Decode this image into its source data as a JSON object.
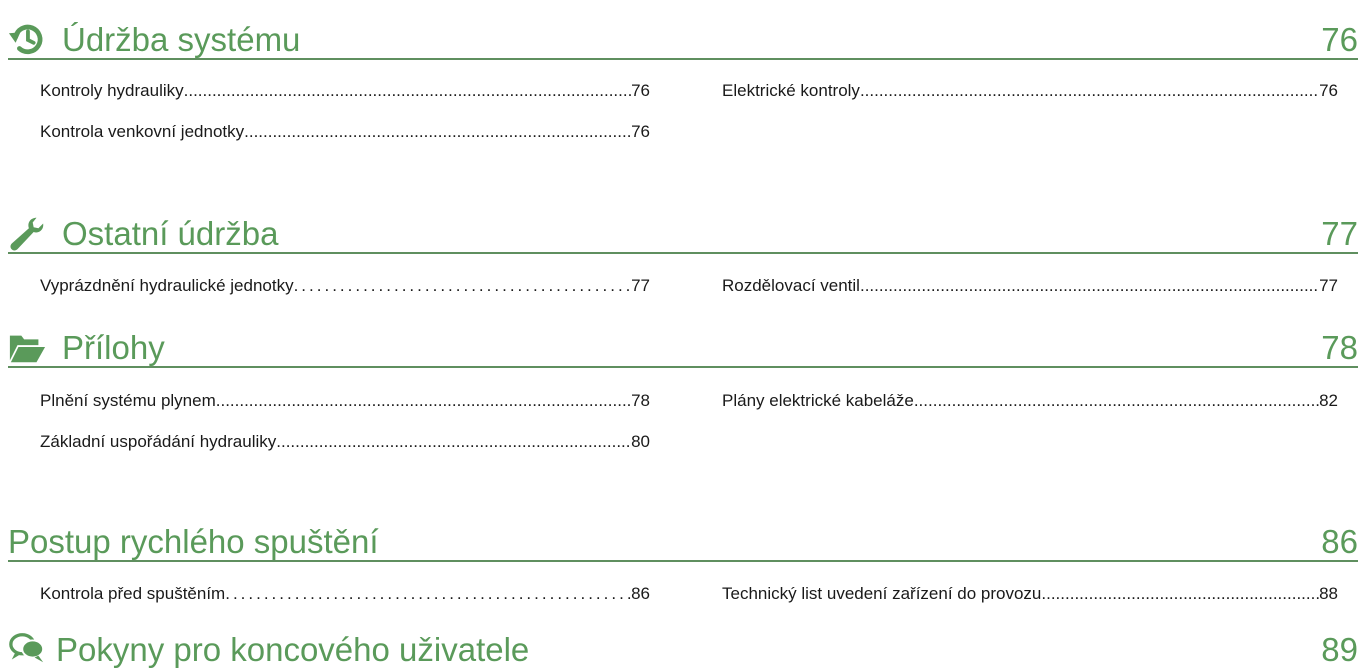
{
  "icons": {
    "maintenance": "clock-history-icon",
    "other_maintenance": "wrench-icon",
    "appendix": "folder-open-icon",
    "user": "speech-bubbles-icon"
  },
  "colors": {
    "heading": "#5a9a5a",
    "rule": "#5f8f5f",
    "text": "#1a1a1a"
  },
  "sections": [
    {
      "title": "Údržba systému",
      "page": "76",
      "entries": [
        {
          "label": "Kontroly hydrauliky ",
          "page": "76"
        },
        {
          "label": "Elektrické kontroly",
          "page": " 76"
        },
        {
          "label": "Kontrola venkovní jednotky ",
          "page": "76"
        }
      ]
    },
    {
      "title": "Ostatní údržba",
      "page": "77",
      "entries": [
        {
          "label": "Vyprázdnění hydraulické jednotky",
          "page": " 77"
        },
        {
          "label": "Rozdělovací ventil",
          "page": " 77"
        }
      ]
    },
    {
      "title": "Přílohy",
      "page": "78",
      "entries": [
        {
          "label": "Plnění systému plynem ",
          "page": "78"
        },
        {
          "label": "Plány elektrické kabeláže ",
          "page": " 82"
        },
        {
          "label": "Základní uspořádání hydrauliky",
          "page": "80"
        }
      ]
    },
    {
      "title": "Postup rychlého spuštění",
      "page": "86",
      "entries": [
        {
          "label": "Kontrola před spuštěním",
          "page": " 86"
        },
        {
          "label": "Technický list uvedení zařízení do provozu",
          "page": " 88"
        }
      ]
    },
    {
      "title": "Pokyny pro koncového uživatele",
      "page": "89",
      "entries": []
    }
  ]
}
